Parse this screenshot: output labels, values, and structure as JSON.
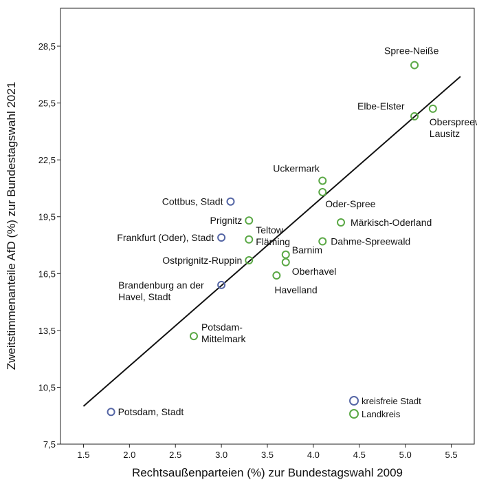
{
  "chart_data": {
    "type": "scatter",
    "xlabel": "Rechtsaußenparteien (%) zur Bundestagswahl 2009",
    "ylabel": "Zweitstimmenanteile AfD (%) zur Bundestagswahl 2021",
    "xlim": [
      1.25,
      5.75
    ],
    "ylim": [
      7.5,
      30.5
    ],
    "x_ticks": [
      "1.5",
      "2.0",
      "2.5",
      "3.0",
      "3.5",
      "4.0",
      "4.5",
      "5.0",
      "5.5"
    ],
    "y_ticks": [
      "7,5",
      "10,5",
      "13,5",
      "16,5",
      "19,5",
      "22,5",
      "25,5",
      "28,5"
    ],
    "grid": false,
    "legend_position": "bottom-right",
    "legend": [
      {
        "label": "kreisfreie Stadt",
        "color": "#5566a5"
      },
      {
        "label": "Landkreis",
        "color": "#5aa845"
      }
    ],
    "fit_line": {
      "x": [
        1.5,
        5.6
      ],
      "y": [
        9.5,
        26.9
      ]
    },
    "points": [
      {
        "label": "Spree-Neiße",
        "x": 5.1,
        "y": 27.5,
        "group": "Landkreis"
      },
      {
        "label": "Elbe-Elster",
        "x": 5.1,
        "y": 24.8,
        "group": "Landkreis"
      },
      {
        "label": "Oberspreewald-\nLausitz",
        "x": 5.3,
        "y": 25.2,
        "group": "Landkreis"
      },
      {
        "label": "Uckermark",
        "x": 4.1,
        "y": 21.4,
        "group": "Landkreis"
      },
      {
        "label": "Oder-Spree",
        "x": 4.1,
        "y": 20.8,
        "group": "Landkreis"
      },
      {
        "label": "Cottbus, Stadt",
        "x": 3.1,
        "y": 20.3,
        "group": "kreisfreie Stadt"
      },
      {
        "label": "Prignitz",
        "x": 3.3,
        "y": 19.3,
        "group": "Landkreis"
      },
      {
        "label": "Teltow\nFläming",
        "x": 3.3,
        "y": 18.3,
        "group": "Landkreis"
      },
      {
        "label": "Frankfurt (Oder), Stadt",
        "x": 3.0,
        "y": 18.4,
        "group": "kreisfreie Stadt"
      },
      {
        "label": "Märkisch-Oderland",
        "x": 4.3,
        "y": 19.2,
        "group": "Landkreis"
      },
      {
        "label": "Dahme-Spreewald",
        "x": 4.1,
        "y": 18.2,
        "group": "Landkreis"
      },
      {
        "label": "Barnim",
        "x": 3.7,
        "y": 17.5,
        "group": "Landkreis"
      },
      {
        "label": "Oberhavel",
        "x": 3.7,
        "y": 17.1,
        "group": "Landkreis"
      },
      {
        "label": "Ostprignitz-Ruppin",
        "x": 3.3,
        "y": 17.2,
        "group": "Landkreis"
      },
      {
        "label": "Havelland",
        "x": 3.6,
        "y": 16.4,
        "group": "Landkreis"
      },
      {
        "label": "Brandenburg an der\nHavel, Stadt",
        "x": 3.0,
        "y": 15.9,
        "group": "kreisfreie Stadt"
      },
      {
        "label": "Potsdam-\nMittelmark",
        "x": 2.7,
        "y": 13.2,
        "group": "Landkreis"
      },
      {
        "label": "Potsdam, Stadt",
        "x": 1.8,
        "y": 9.2,
        "group": "kreisfreie Stadt"
      }
    ]
  }
}
